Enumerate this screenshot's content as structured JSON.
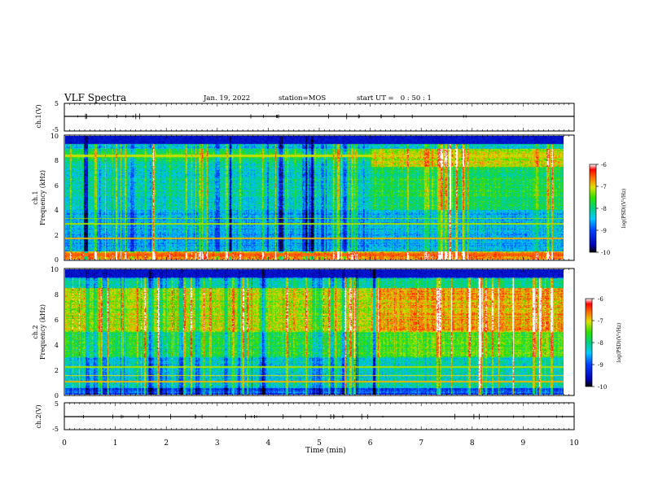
{
  "header": {
    "title": "VLF Spectra",
    "date": "Jan. 19, 2022",
    "station": "station=MOS",
    "start": "start UT =   0 : 50 : 1"
  },
  "chart_data": [
    {
      "type": "line",
      "panel": "ch1-waveform",
      "ylabel": "ch.1(V)",
      "ylim": [
        -5,
        5
      ],
      "yticks": [
        "5",
        "-5"
      ],
      "xlim": [
        0,
        10
      ],
      "series": [
        {
          "values": "flat trace near 0 V with sparse small spikes"
        }
      ]
    },
    {
      "type": "heatmap",
      "panel": "ch1-spectrogram",
      "ylabel": "ch.1\nFrequency (kHz)",
      "ylim": [
        0,
        10
      ],
      "yticks": [
        "0",
        "2",
        "4",
        "6",
        "8",
        "10"
      ],
      "xlim": [
        0,
        10
      ],
      "colorbar": {
        "label": "log(PSD)(V²/Hz)",
        "range": [
          -10,
          -6
        ],
        "ticks": [
          "-6",
          "-7",
          "-8",
          "-9",
          "-10"
        ]
      }
    },
    {
      "type": "heatmap",
      "panel": "ch2-spectrogram",
      "ylabel": "ch.2\nFrequency (kHz)",
      "ylim": [
        0,
        10
      ],
      "yticks": [
        "0",
        "2",
        "4",
        "6",
        "8",
        "10"
      ],
      "xlim": [
        0,
        10
      ],
      "colorbar": {
        "label": "log(PSD)(V²/Hz)",
        "range": [
          -10,
          -6
        ],
        "ticks": [
          "-6",
          "-7",
          "-8",
          "-9",
          "-10"
        ]
      }
    },
    {
      "type": "line",
      "panel": "ch2-waveform",
      "ylabel": "ch.2(V)",
      "ylim": [
        -5,
        5
      ],
      "yticks": [
        "5",
        "-5"
      ],
      "xlim": [
        0,
        10
      ],
      "series": [
        {
          "values": "flat trace near 0 V with sparse small spikes"
        }
      ]
    }
  ],
  "xaxis": {
    "label": "Time (min)",
    "ticks": [
      "0",
      "1",
      "2",
      "3",
      "4",
      "5",
      "6",
      "7",
      "8",
      "9",
      "10"
    ]
  },
  "colormap": [
    "#000060",
    "#0000ff",
    "#00aaff",
    "#00e0d0",
    "#00d040",
    "#d0e800",
    "#ff8000",
    "#ff0000",
    "#ffffff"
  ]
}
